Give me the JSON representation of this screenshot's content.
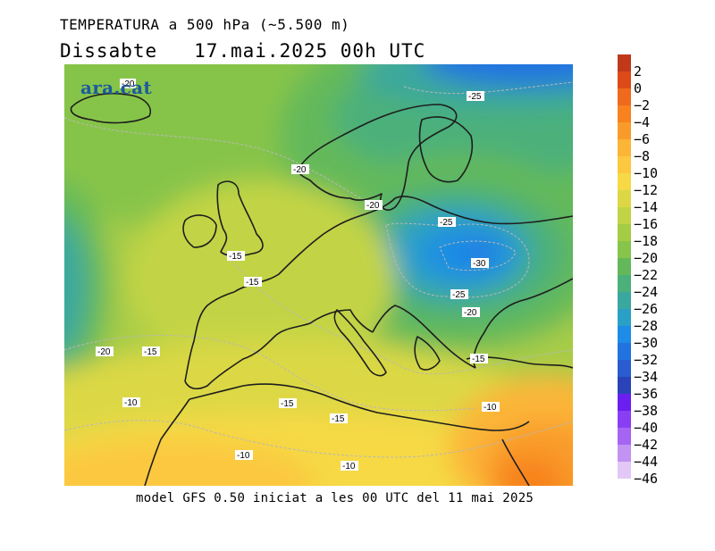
{
  "header": {
    "title": "TEMPERATURA a 500 hPa (~5.500 m)",
    "subtitle": "Dissabte   17.mai.2025 00h UTC"
  },
  "footer": {
    "text": "model GFS 0.50 iniciat a les 00 UTC del 11 mai 2025"
  },
  "logo": {
    "text": "ara.cat",
    "color": "#1b5a9e"
  },
  "contour_labels": [
    "-20",
    "-25",
    "-20",
    "-20",
    "-25",
    "-15",
    "-15",
    "-30",
    "-25",
    "-20",
    "-20",
    "-15",
    "-15",
    "-10",
    "-15",
    "-10",
    "-15",
    "-10",
    "-10"
  ],
  "color_scale": [
    {
      "label": "2",
      "color": "#c0391b"
    },
    {
      "label": "0",
      "color": "#dc4a18"
    },
    {
      "label": "−2",
      "color": "#ef6a1c"
    },
    {
      "label": "−4",
      "color": "#f7821f"
    },
    {
      "label": "−6",
      "color": "#f99b2a"
    },
    {
      "label": "−8",
      "color": "#fbb537"
    },
    {
      "label": "−10",
      "color": "#fbc840"
    },
    {
      "label": "−12",
      "color": "#f6d945"
    },
    {
      "label": "−14",
      "color": "#dcd845"
    },
    {
      "label": "−16",
      "color": "#c2d445"
    },
    {
      "label": "−18",
      "color": "#a5cc45"
    },
    {
      "label": "−20",
      "color": "#86c44a"
    },
    {
      "label": "−22",
      "color": "#63b95a"
    },
    {
      "label": "−24",
      "color": "#4cb07a"
    },
    {
      "label": "−26",
      "color": "#3aa89e"
    },
    {
      "label": "−28",
      "color": "#2aa0c6"
    },
    {
      "label": "−30",
      "color": "#1e8ce6"
    },
    {
      "label": "−32",
      "color": "#2173e0"
    },
    {
      "label": "−34",
      "color": "#2a5cd0"
    },
    {
      "label": "−36",
      "color": "#2a43b8"
    },
    {
      "label": "−38",
      "color": "#6a1ef0"
    },
    {
      "label": "−40",
      "color": "#8a3ef4"
    },
    {
      "label": "−42",
      "color": "#a565f2"
    },
    {
      "label": "−44",
      "color": "#c293f2"
    },
    {
      "label": "−46",
      "color": "#e2c8f6"
    }
  ]
}
